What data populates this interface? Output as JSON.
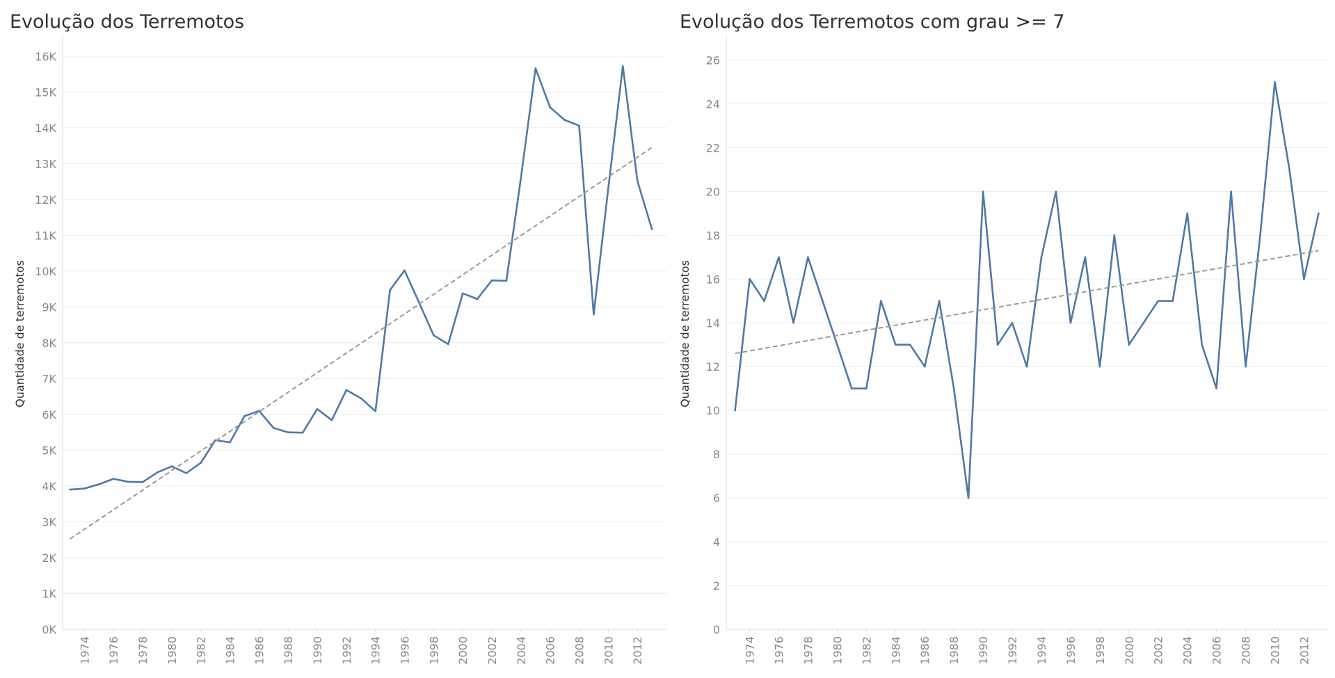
{
  "chart_data": [
    {
      "type": "line",
      "title": "Evolução dos Terremotos",
      "ylabel": "Quantidade de terremotos",
      "xlabel": "",
      "ylim": [
        0,
        16500
      ],
      "xlim": [
        1972.5,
        2014
      ],
      "yticks": [
        0,
        1000,
        2000,
        3000,
        4000,
        5000,
        6000,
        7000,
        8000,
        9000,
        10000,
        11000,
        12000,
        13000,
        14000,
        15000,
        16000
      ],
      "ytick_labels": [
        "0K",
        "1K",
        "2K",
        "3K",
        "4K",
        "5K",
        "6K",
        "7K",
        "8K",
        "9K",
        "10K",
        "11K",
        "12K",
        "13K",
        "14K",
        "15K",
        "16K"
      ],
      "xticks": [
        1974,
        1976,
        1978,
        1980,
        1982,
        1984,
        1986,
        1988,
        1990,
        1992,
        1994,
        1996,
        1998,
        2000,
        2002,
        2004,
        2006,
        2008,
        2010,
        2012
      ],
      "grid": true,
      "series": [
        {
          "x": [
            1973,
            1974,
            1975,
            1976,
            1977,
            1978,
            1979,
            1980,
            1981,
            1982,
            1983,
            1984,
            1985,
            1986,
            1987,
            1988,
            1989,
            1990,
            1991,
            1992,
            1993,
            1994,
            1995,
            1996,
            1997,
            1998,
            1999,
            2000,
            2001,
            2002,
            2003,
            2004,
            2005,
            2006,
            2007,
            2008,
            2009,
            2010,
            2011,
            2012,
            2013
          ],
          "values": [
            3900,
            3930,
            4050,
            4200,
            4120,
            4110,
            4380,
            4550,
            4360,
            4650,
            5280,
            5220,
            5950,
            6100,
            5620,
            5500,
            5490,
            6150,
            5840,
            6680,
            6450,
            6090,
            9470,
            10020,
            9120,
            8210,
            7960,
            9380,
            9220,
            9740,
            9730,
            12600,
            15660,
            14570,
            14220,
            14060,
            8790,
            12300,
            15720,
            12520,
            11170
          ]
        },
        {
          "name": "trend",
          "style": "dashed",
          "x": [
            1973,
            2013
          ],
          "values": [
            2520,
            13450
          ]
        }
      ]
    },
    {
      "type": "line",
      "title": "Evolução dos Terremotos com grau >= 7",
      "ylabel": "Quantidade de terremotos",
      "xlabel": "",
      "ylim": [
        0,
        27
      ],
      "xlim": [
        1972.4,
        2013.6
      ],
      "yticks": [
        0,
        2,
        4,
        6,
        8,
        10,
        12,
        14,
        16,
        18,
        20,
        22,
        24,
        26
      ],
      "ytick_labels": [
        "0",
        "2",
        "4",
        "6",
        "8",
        "10",
        "12",
        "14",
        "16",
        "18",
        "20",
        "22",
        "24",
        "26"
      ],
      "xticks": [
        1974,
        1976,
        1978,
        1980,
        1982,
        1984,
        1986,
        1988,
        1990,
        1992,
        1994,
        1996,
        1998,
        2000,
        2002,
        2004,
        2006,
        2008,
        2010,
        2012
      ],
      "grid": true,
      "series": [
        {
          "x": [
            1973,
            1974,
            1975,
            1976,
            1977,
            1978,
            1979,
            1980,
            1981,
            1982,
            1983,
            1984,
            1985,
            1986,
            1987,
            1988,
            1989,
            1990,
            1991,
            1992,
            1993,
            1994,
            1995,
            1996,
            1997,
            1998,
            1999,
            2000,
            2001,
            2002,
            2003,
            2004,
            2005,
            2006,
            2007,
            2008,
            2009,
            2010,
            2011,
            2012,
            2013
          ],
          "values": [
            10,
            16,
            15,
            17,
            14,
            17,
            15,
            13,
            11,
            11,
            15,
            13,
            13,
            12,
            15,
            11,
            6,
            20,
            13,
            14,
            12,
            17,
            20,
            14,
            17,
            12,
            18,
            13,
            14,
            15,
            15,
            19,
            13,
            11,
            20,
            12,
            18,
            25,
            21,
            16,
            19
          ]
        },
        {
          "name": "trend",
          "style": "dashed",
          "x": [
            1973,
            2013
          ],
          "values": [
            12.6,
            17.3
          ]
        }
      ]
    }
  ],
  "colors": {
    "line": "#4e79a7",
    "trend": "#999999",
    "grid": "#ebebeb",
    "axis": "#dddddd",
    "tick_text": "#888888",
    "ylabel_text": "#333333"
  }
}
